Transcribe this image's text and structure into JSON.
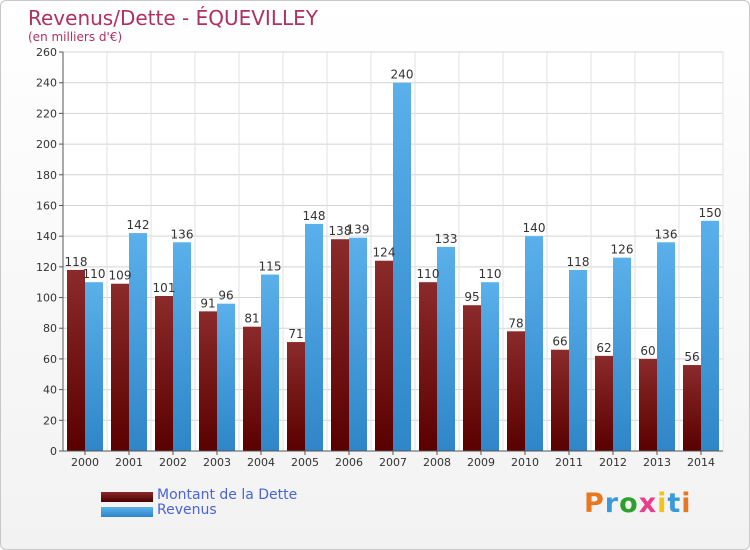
{
  "title": "Revenus/Dette - ÉQUEVILLEY",
  "subtitle": "(en milliers d'€)",
  "logo": {
    "text": "Proxiti",
    "letter_colors": [
      "#e87722",
      "#3a9ad9",
      "#2ca02c",
      "#e83e8c",
      "#f0c419",
      "#3a9ad9",
      "#e87722"
    ]
  },
  "chart_data": {
    "type": "bar",
    "categories": [
      "2000",
      "2001",
      "2002",
      "2003",
      "2004",
      "2005",
      "2006",
      "2007",
      "2008",
      "2009",
      "2010",
      "2011",
      "2012",
      "2013",
      "2014"
    ],
    "series": [
      {
        "name": "Montant de la Dette",
        "color": "#8b1a1a",
        "values": [
          118,
          109,
          101,
          91,
          81,
          71,
          138,
          124,
          110,
          95,
          78,
          66,
          62,
          60,
          56
        ]
      },
      {
        "name": "Revenus",
        "color": "#4aa3e0",
        "values": [
          110,
          142,
          136,
          96,
          115,
          148,
          139,
          240,
          133,
          110,
          140,
          118,
          126,
          136,
          150
        ]
      }
    ],
    "ylim": [
      0,
      260
    ],
    "yticks": [
      0,
      20,
      40,
      60,
      80,
      100,
      120,
      140,
      160,
      180,
      200,
      220,
      240,
      260
    ],
    "grid": true,
    "legend_position": "bottom-left"
  }
}
